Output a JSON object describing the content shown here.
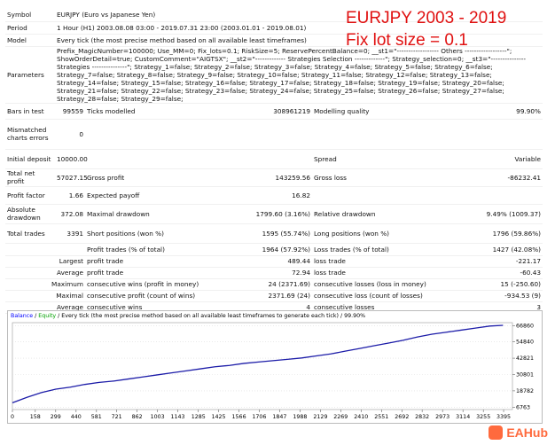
{
  "overlay": {
    "line1": "EURJPY 2003 - 2019",
    "line2": "Fix lot size = 0.1"
  },
  "report": {
    "rows": [
      {
        "label": "Symbol",
        "text": "EURJPY (Euro vs Japanese Yen)"
      },
      {
        "label": "Period",
        "text": "1 Hour (H1) 2003.08.08 03:00 - 2019.07.31 23:00 (2003.01.01 - 2019.08.01)"
      },
      {
        "label": "Model",
        "text": "Every tick (the most precise method based on all available least timeframes)"
      },
      {
        "label": "Parameters",
        "text": "Prefix_MagicNumber=100000; Use_MM=0; Fix_lots=0.1; RiskSize=5; ReservePercentBalance=0; __st1=\"------------------ Others ------------------\"; ShowOrderDetail=true; CustomComment=\"AIGTSX\"; __st2=\"------------- Strategies Selection -------------\"; Strategy_selection=0; __st3=\"--------------- Strategies ---------------\"; Strategy_1=false; Strategy_2=false; Strategy_3=false; Strategy_4=false; Strategy_5=false; Strategy_6=false; Strategy_7=false; Strategy_8=false; Strategy_9=false; Strategy_10=false; Strategy_11=false; Strategy_12=false; Strategy_13=false; Strategy_14=false; Strategy_15=false; Strategy_16=false; Strategy_17=false; Strategy_18=false; Strategy_19=false; Strategy_20=false; Strategy_21=false; Strategy_22=false; Strategy_23=false; Strategy_24=false; Strategy_25=false; Strategy_26=false; Strategy_27=false; Strategy_28=false; Strategy_29=false;"
      },
      {
        "label": "Bars in test",
        "value": "99559",
        "label2": "Ticks modelled",
        "value2": "308961219",
        "label3": "Modelling quality",
        "value3": "99.90%"
      },
      {
        "label": "Mismatched charts errors",
        "value": "0"
      },
      {
        "label": "Initial deposit",
        "value": "10000.00",
        "label3": "Spread",
        "value3": "Variable"
      },
      {
        "label": "Total net profit",
        "value": "57027.15",
        "label2": "Gross profit",
        "value2": "143259.56",
        "label3": "Gross loss",
        "value3": "-86232.41"
      },
      {
        "label": "Profit factor",
        "value": "1.66",
        "label2": "Expected payoff",
        "value2": "16.82"
      },
      {
        "label": "Absolute drawdown",
        "value": "372.08",
        "label2": "Maximal drawdown",
        "value2": "1799.60 (3.16%)",
        "label3": "Relative drawdown",
        "value3": "9.49% (1009.37)"
      },
      {
        "label": "Total trades",
        "value": "3391",
        "label2": "Short positions (won %)",
        "value2": "1595 (55.74%)",
        "label3": "Long positions (won %)",
        "value3": "1796 (59.86%)"
      },
      {
        "label2": "Profit trades (% of total)",
        "value2": "1964 (57.92%)",
        "label3": "Loss trades (% of total)",
        "value3": "1427 (42.08%)"
      },
      {
        "prefix": "Largest",
        "label2": "profit trade",
        "value2": "489.44",
        "label3": "loss trade",
        "value3": "-221.17"
      },
      {
        "prefix": "Average",
        "label2": "profit trade",
        "value2": "72.94",
        "label3": "loss trade",
        "value3": "-60.43"
      },
      {
        "prefix": "Maximum",
        "label2": "consecutive wins (profit in money)",
        "value2": "24 (2371.69)",
        "label3": "consecutive losses (loss in money)",
        "value3": "15 (-250.60)"
      },
      {
        "prefix": "Maximal",
        "label2": "consecutive profit (count of wins)",
        "value2": "2371.69 (24)",
        "label3": "consecutive loss (count of losses)",
        "value3": "-934.53 (9)"
      },
      {
        "prefix": "Average",
        "label2": "consecutive wins",
        "value2": "4",
        "label3": "consecutive losses",
        "value3": "3"
      }
    ]
  },
  "chart": {
    "type": "line",
    "legend": [
      {
        "name": "Balance",
        "color": "#0000ff"
      },
      {
        "name": "Equity",
        "color": "#00a000"
      }
    ],
    "separator": "/",
    "description": "Every tick (the most precise method based on all available least timeframes to generate each tick)",
    "quality": "99.90%",
    "x": [
      0,
      100,
      200,
      300,
      400,
      500,
      600,
      700,
      800,
      900,
      1000,
      1100,
      1200,
      1300,
      1400,
      1500,
      1600,
      1700,
      1800,
      1900,
      2000,
      2100,
      2200,
      2300,
      2400,
      2500,
      2600,
      2700,
      2800,
      2900,
      3000,
      3100,
      3200,
      3300,
      3391
    ],
    "series": [
      {
        "name": "Balance",
        "color": "#1c1ca8",
        "values": [
          10000,
          14000,
          17500,
          20000,
          21500,
          23500,
          25000,
          26000,
          27500,
          29000,
          30500,
          32000,
          33500,
          35000,
          36500,
          37500,
          39000,
          40000,
          41000,
          42000,
          43000,
          44500,
          46000,
          48000,
          50000,
          52000,
          54000,
          56000,
          58500,
          60500,
          62000,
          63500,
          65000,
          66500,
          67027
        ]
      }
    ],
    "xlim": [
      0,
      3456
    ],
    "ylim": [
      5000,
      69000
    ],
    "xticks": [
      0,
      158,
      299,
      440,
      581,
      721,
      862,
      1003,
      1143,
      1285,
      1425,
      1566,
      1706,
      1847,
      1988,
      2129,
      2269,
      2410,
      2551,
      2692,
      2832,
      2973,
      3114,
      3255,
      3395
    ],
    "yticks": [
      6763,
      18782,
      30801,
      42821,
      54840,
      66860
    ],
    "grid": true
  },
  "watermark": "EAHub"
}
